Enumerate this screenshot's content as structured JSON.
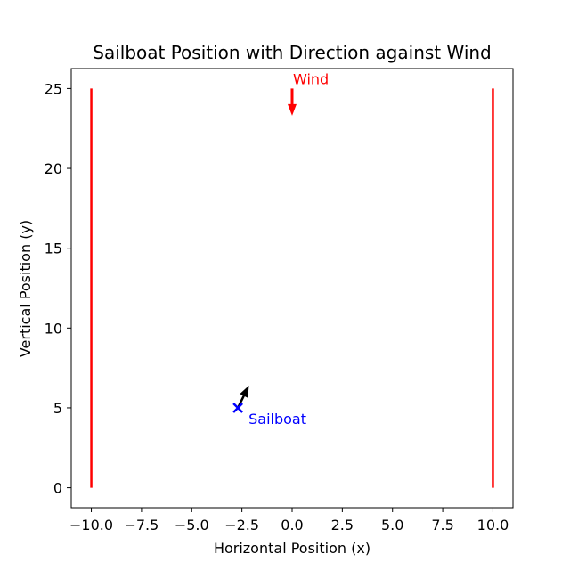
{
  "chart_data": {
    "type": "line",
    "title": "Sailboat Position with Direction against Wind",
    "xlabel": "Horizontal Position (x)",
    "ylabel": "Vertical Position (y)",
    "xlim": [
      -11,
      11
    ],
    "ylim": [
      -1.25,
      26.25
    ],
    "xticks": [
      -10.0,
      -7.5,
      -5.0,
      -2.5,
      0.0,
      2.5,
      5.0,
      7.5,
      10.0
    ],
    "xtick_labels": [
      "−10.0",
      "−7.5",
      "−5.0",
      "−2.5",
      "0.0",
      "2.5",
      "5.0",
      "7.5",
      "10.0"
    ],
    "yticks": [
      0,
      5,
      10,
      15,
      20,
      25
    ],
    "ytick_labels": [
      "0",
      "5",
      "10",
      "15",
      "20",
      "25"
    ],
    "grid": false,
    "boundaries": [
      {
        "x": -10,
        "y_start": 0,
        "y_end": 25,
        "color": "#ff0000"
      },
      {
        "x": 10,
        "y_start": 0,
        "y_end": 25,
        "color": "#ff0000"
      }
    ],
    "wind": {
      "label": "Wind",
      "x": 0,
      "y_start": 25,
      "y_end": 23.3,
      "color": "#ff0000"
    },
    "sailboat": {
      "label": "Sailboat",
      "x": -2.7,
      "y": 5,
      "marker": "x",
      "color": "#0000ff"
    },
    "heading": {
      "x_start": -2.7,
      "y_start": 5,
      "x_end": -2.15,
      "y_end": 6.4,
      "color": "#000000"
    }
  }
}
